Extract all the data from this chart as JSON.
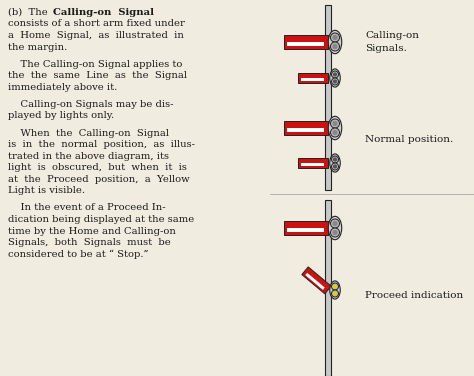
{
  "bg_color": "#f0ece0",
  "text_color": "#1a1a1a",
  "red_color": "#cc1111",
  "white_stripe": "#ffffff",
  "pole_color": "#c8c8c8",
  "dark_outline": "#222222",
  "yellow_color": "#e8d000",
  "label1": "Calling-on\nSignals.",
  "label2": "Normal position.",
  "label3": "Proceed indication",
  "fig_width": 4.74,
  "fig_height": 3.76,
  "dpi": 100
}
